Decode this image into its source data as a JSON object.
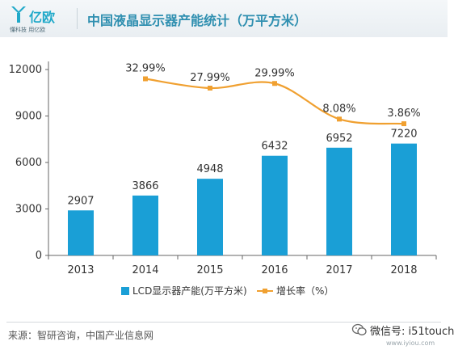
{
  "header": {
    "logo_name": "亿欧",
    "logo_tagline": "懂科技 用亿欧",
    "title": "中国液晶显示器产能统计（万平方米）",
    "background": "#eef2f5",
    "accent": "#2f8fb0"
  },
  "chart_data": {
    "type": "bar",
    "title": "中国液晶显示器产能统计（万平方米）",
    "categories": [
      "2013",
      "2014",
      "2015",
      "2016",
      "2017",
      "2018"
    ],
    "series": [
      {
        "name": "LCD显示器产能(万平方米)",
        "kind": "bar",
        "color": "#1a9fd6",
        "values": [
          2907,
          3866,
          4948,
          6432,
          6952,
          7220
        ],
        "labels": [
          "2907",
          "3866",
          "4948",
          "6432",
          "6952",
          "7220"
        ]
      },
      {
        "name": "增长率（%）",
        "kind": "line",
        "color": "#f0a030",
        "values": [
          null,
          32.99,
          27.99,
          29.99,
          8.08,
          3.86
        ],
        "labels": [
          "",
          "32.99%",
          "27.99%",
          "29.99%",
          "8.08%",
          "3.86%"
        ],
        "plotted_on_left_axis": [
          null,
          11400,
          10800,
          11100,
          8800,
          8500
        ]
      }
    ],
    "y_axis": {
      "ylim": [
        0,
        12000
      ],
      "ticks": [
        0,
        3000,
        6000,
        9000,
        12000
      ],
      "tick_labels": [
        "0",
        "3000",
        "6000",
        "9000",
        "12000"
      ]
    },
    "grid": false,
    "legend": {
      "position": "bottom-center"
    }
  },
  "footer": {
    "source": "来源：智研咨询，中国产业信息网",
    "watermark": "微信号: i51touch",
    "watermark_site": "www.iyiou.com"
  },
  "icons": [
    "yiou-logo-icon",
    "wechat-icon"
  ]
}
